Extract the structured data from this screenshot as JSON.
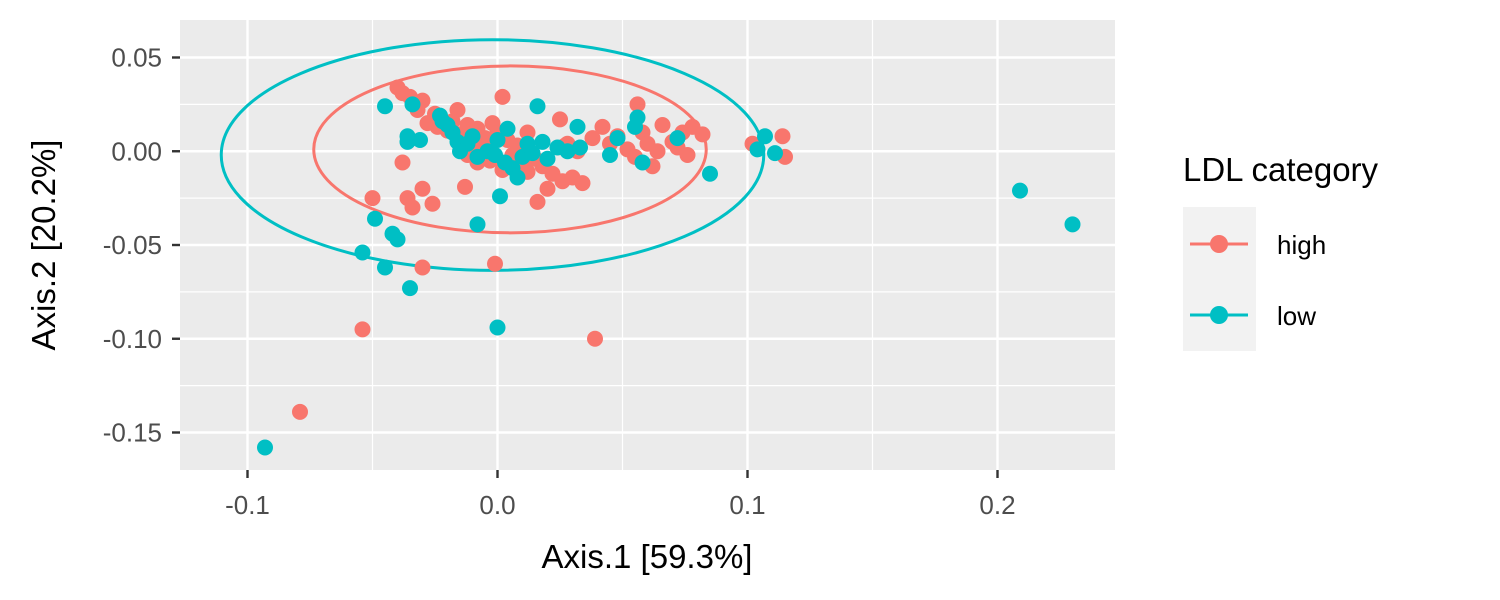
{
  "chart_data": {
    "type": "scatter",
    "title": "",
    "xlabel": "Axis.1   [59.3%]",
    "ylabel": "Axis.2   [20.2%]",
    "xlim": [
      -0.127,
      0.247
    ],
    "ylim": [
      -0.17,
      0.07
    ],
    "x_ticks": [
      -0.1,
      0.0,
      0.1,
      0.2
    ],
    "x_tick_labels": [
      "-0.1",
      "0.0",
      "0.1",
      "0.2"
    ],
    "y_ticks": [
      0.05,
      0.0,
      -0.05,
      -0.1,
      -0.15
    ],
    "y_tick_labels": [
      "0.05",
      "0.00",
      "-0.05",
      "-0.10",
      "-0.15"
    ],
    "grid": true,
    "background": "#ebebeb",
    "legend": {
      "title": "LDL category",
      "position": "right"
    },
    "series": [
      {
        "name": "high",
        "color": "#f8766d",
        "ellipse": {
          "cx": 0.005,
          "cy": 0.001,
          "rx": 0.0785,
          "ry": 0.0445
        },
        "points": [
          {
            "x": -0.04,
            "y": 0.034
          },
          {
            "x": -0.038,
            "y": 0.031
          },
          {
            "x": -0.035,
            "y": 0.029
          },
          {
            "x": -0.03,
            "y": 0.027
          },
          {
            "x": -0.032,
            "y": 0.022
          },
          {
            "x": -0.025,
            "y": 0.02
          },
          {
            "x": -0.016,
            "y": 0.022
          },
          {
            "x": -0.028,
            "y": 0.015
          },
          {
            "x": -0.024,
            "y": 0.013
          },
          {
            "x": -0.02,
            "y": 0.011
          },
          {
            "x": -0.015,
            "y": 0.009
          },
          {
            "x": -0.012,
            "y": 0.014
          },
          {
            "x": -0.008,
            "y": 0.012
          },
          {
            "x": -0.005,
            "y": 0.007
          },
          {
            "x": -0.01,
            "y": 0.004
          },
          {
            "x": -0.002,
            "y": 0.015
          },
          {
            "x": 0.002,
            "y": 0.029
          },
          {
            "x": 0.0,
            "y": 0.01
          },
          {
            "x": 0.004,
            "y": 0.006
          },
          {
            "x": 0.008,
            "y": 0.003
          },
          {
            "x": 0.006,
            "y": -0.002
          },
          {
            "x": 0.01,
            "y": -0.006
          },
          {
            "x": 0.012,
            "y": 0.01
          },
          {
            "x": 0.015,
            "y": -0.004
          },
          {
            "x": -0.003,
            "y": -0.005
          },
          {
            "x": 0.002,
            "y": -0.01
          },
          {
            "x": -0.008,
            "y": -0.006
          },
          {
            "x": -0.012,
            "y": -0.002
          },
          {
            "x": 0.018,
            "y": -0.008
          },
          {
            "x": 0.022,
            "y": -0.012
          },
          {
            "x": 0.026,
            "y": -0.016
          },
          {
            "x": 0.03,
            "y": -0.014
          },
          {
            "x": 0.034,
            "y": -0.017
          },
          {
            "x": 0.02,
            "y": -0.02
          },
          {
            "x": 0.016,
            "y": -0.027
          },
          {
            "x": 0.025,
            "y": 0.017
          },
          {
            "x": 0.028,
            "y": 0.004
          },
          {
            "x": 0.032,
            "y": 0.0
          },
          {
            "x": 0.042,
            "y": 0.013
          },
          {
            "x": 0.048,
            "y": 0.008
          },
          {
            "x": 0.052,
            "y": 0.001
          },
          {
            "x": 0.055,
            "y": -0.003
          },
          {
            "x": 0.058,
            "y": 0.01
          },
          {
            "x": 0.06,
            "y": 0.004
          },
          {
            "x": 0.056,
            "y": 0.025
          },
          {
            "x": 0.062,
            "y": -0.008
          },
          {
            "x": 0.066,
            "y": 0.014
          },
          {
            "x": 0.07,
            "y": 0.005
          },
          {
            "x": 0.074,
            "y": 0.01
          },
          {
            "x": 0.076,
            "y": -0.002
          },
          {
            "x": 0.078,
            "y": 0.013
          },
          {
            "x": 0.082,
            "y": 0.009
          },
          {
            "x": 0.072,
            "y": 0.002
          },
          {
            "x": 0.064,
            "y": 0.0
          },
          {
            "x": 0.045,
            "y": 0.004
          },
          {
            "x": 0.038,
            "y": 0.007
          },
          {
            "x": 0.102,
            "y": 0.004
          },
          {
            "x": 0.114,
            "y": 0.008
          },
          {
            "x": 0.115,
            "y": -0.003
          },
          {
            "x": -0.05,
            "y": -0.025
          },
          {
            "x": -0.036,
            "y": -0.025
          },
          {
            "x": -0.03,
            "y": -0.02
          },
          {
            "x": -0.034,
            "y": -0.03
          },
          {
            "x": -0.026,
            "y": -0.028
          },
          {
            "x": -0.013,
            "y": -0.019
          },
          {
            "x": -0.038,
            "y": -0.006
          },
          {
            "x": -0.03,
            "y": -0.062
          },
          {
            "x": -0.001,
            "y": -0.06
          },
          {
            "x": -0.054,
            "y": -0.095
          },
          {
            "x": 0.039,
            "y": -0.1
          },
          {
            "x": -0.079,
            "y": -0.139
          },
          {
            "x": 0.008,
            "y": 0.003
          },
          {
            "x": -0.006,
            "y": 0.002
          },
          {
            "x": 0.012,
            "y": -0.011
          },
          {
            "x": -0.018,
            "y": 0.016
          },
          {
            "x": 0.027,
            "y": 0.003
          }
        ]
      },
      {
        "name": "low",
        "color": "#00bfc4",
        "ellipse": {
          "cx": -0.002,
          "cy": -0.002,
          "rx": 0.1085,
          "ry": 0.0615
        },
        "points": [
          {
            "x": -0.045,
            "y": 0.024
          },
          {
            "x": -0.034,
            "y": 0.025
          },
          {
            "x": -0.023,
            "y": 0.019
          },
          {
            "x": -0.036,
            "y": 0.008
          },
          {
            "x": -0.036,
            "y": 0.005
          },
          {
            "x": -0.031,
            "y": 0.006
          },
          {
            "x": -0.022,
            "y": 0.016
          },
          {
            "x": -0.018,
            "y": 0.01
          },
          {
            "x": -0.016,
            "y": 0.005
          },
          {
            "x": -0.012,
            "y": 0.004
          },
          {
            "x": -0.015,
            "y": 0.0
          },
          {
            "x": -0.008,
            "y": -0.003
          },
          {
            "x": -0.004,
            "y": 0.0
          },
          {
            "x": 0.0,
            "y": 0.006
          },
          {
            "x": 0.003,
            "y": -0.006
          },
          {
            "x": 0.006,
            "y": -0.009
          },
          {
            "x": 0.008,
            "y": -0.014
          },
          {
            "x": 0.01,
            "y": -0.003
          },
          {
            "x": 0.012,
            "y": 0.004
          },
          {
            "x": 0.016,
            "y": 0.024
          },
          {
            "x": 0.018,
            "y": 0.005
          },
          {
            "x": 0.024,
            "y": 0.002
          },
          {
            "x": 0.028,
            "y": 0.0
          },
          {
            "x": 0.032,
            "y": 0.013
          },
          {
            "x": 0.033,
            "y": 0.002
          },
          {
            "x": 0.045,
            "y": -0.002
          },
          {
            "x": 0.048,
            "y": 0.007
          },
          {
            "x": 0.055,
            "y": 0.013
          },
          {
            "x": 0.056,
            "y": 0.018
          },
          {
            "x": 0.058,
            "y": -0.006
          },
          {
            "x": 0.072,
            "y": 0.007
          },
          {
            "x": 0.085,
            "y": -0.012
          },
          {
            "x": 0.104,
            "y": 0.001
          },
          {
            "x": 0.107,
            "y": 0.008
          },
          {
            "x": 0.111,
            "y": -0.001
          },
          {
            "x": 0.209,
            "y": -0.021
          },
          {
            "x": 0.23,
            "y": -0.039
          },
          {
            "x": 0.001,
            "y": -0.024
          },
          {
            "x": -0.008,
            "y": -0.039
          },
          {
            "x": -0.049,
            "y": -0.036
          },
          {
            "x": -0.042,
            "y": -0.044
          },
          {
            "x": -0.04,
            "y": -0.047
          },
          {
            "x": -0.054,
            "y": -0.054
          },
          {
            "x": -0.045,
            "y": -0.062
          },
          {
            "x": -0.035,
            "y": -0.073
          },
          {
            "x": 0.0,
            "y": -0.094
          },
          {
            "x": -0.093,
            "y": -0.158
          },
          {
            "x": -0.01,
            "y": 0.008
          },
          {
            "x": 0.004,
            "y": 0.012
          },
          {
            "x": -0.02,
            "y": 0.014
          },
          {
            "x": 0.014,
            "y": -0.001
          },
          {
            "x": 0.02,
            "y": -0.004
          },
          {
            "x": -0.001,
            "y": -0.002
          }
        ]
      }
    ]
  }
}
